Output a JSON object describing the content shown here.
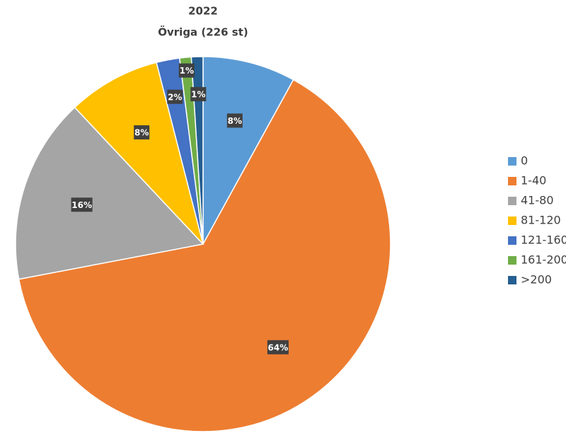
{
  "chart_data": {
    "type": "pie",
    "title": "2022",
    "subtitle": "Övriga (226 st)",
    "categories": [
      "0",
      "1-40",
      "41-80",
      "81-120",
      "121-160",
      "161-200",
      ">200"
    ],
    "values": [
      8,
      64,
      16,
      8,
      2,
      1,
      1
    ],
    "value_labels": [
      "8%",
      "64%",
      "16%",
      "8%",
      "2%",
      "1%",
      "1%"
    ],
    "colors": [
      "#5b9bd5",
      "#ed7d31",
      "#a5a5a5",
      "#ffc000",
      "#4472c4",
      "#70ad47",
      "#255e91"
    ],
    "legend": "right"
  }
}
